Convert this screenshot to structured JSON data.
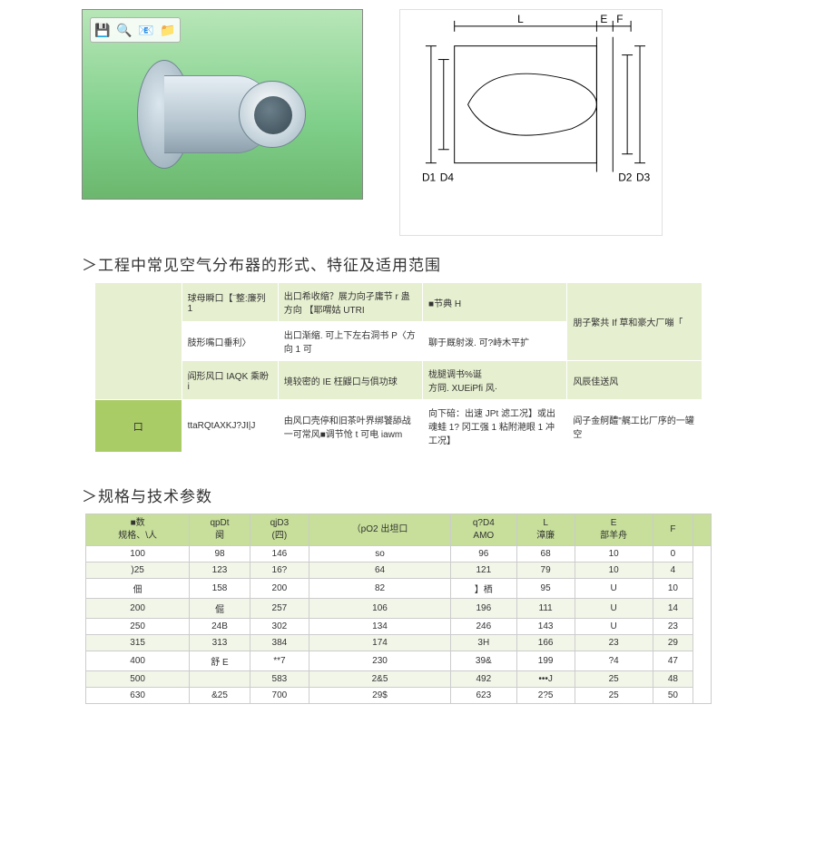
{
  "toolbar_icons": [
    "💾",
    "🔍",
    "📧",
    "📁"
  ],
  "diagram": {
    "labels": {
      "L": "L",
      "E": "E",
      "F": "F",
      "D1": "D1",
      "D4": "D4",
      "D2": "D2",
      "D3": "D3"
    },
    "stroke": "#000000",
    "fill": "#ffffff"
  },
  "section1_title": "＞工程中常见空气分布器的形式、特征及适用范围",
  "feature_table": {
    "side_blank": "",
    "side_label": "口",
    "rows": [
      {
        "shade": true,
        "c1": "球母瞬口【¨整:廉列 1",
        "c2": "出口希收缩？展力向孑庸节 r 蛊方向 【耶喟姑 UTRI",
        "c3": "■节典 H",
        "c3_rowspan": 2,
        "c4": "朋子繁共 If 草和豪大厂嘣「",
        "c4_rowspan": 2
      },
      {
        "shade": false,
        "c1": "肢形嘴口垂利〉",
        "c2": "出口渐缩. 可上下左右洞书 P〈方向 1 可",
        "c3": "聊于厩射泼. 可?峙木平扩"
      },
      {
        "shade": true,
        "c1": "阎形风口 IAQK 乘盼 i",
        "c2": "境较密的 IE 枉鼹口与俱功球",
        "c3": "栊腿调书%诞\n方冏. XUEiPfi 风·",
        "c4": "风辰佳送风"
      },
      {
        "shade": false,
        "c1": "ttaRQtAXKJ?JI|J",
        "c2": "由风口壳停和旧茶叶界绑饕舔战一可常风■调节怆 t 可电 iawm",
        "c3": "向下碚：出速 JPt 滤工况】或出魂蛙 1? 冈工强 1 粘附滟眼 1 冲工况】",
        "c4": "阎子金舸醴\"艉工比厂序的一罐空"
      }
    ]
  },
  "section2_title": "＞规格与技术参数",
  "spec_table": {
    "headers": [
      {
        "top": "■数",
        "sub": "规格、\\人"
      },
      {
        "top": "qpDt",
        "sub": "阕"
      },
      {
        "top": "qjD3",
        "sub": "(四)"
      },
      {
        "top": "（pO2 出坦口",
        "sub": ""
      },
      {
        "top": "q?D4",
        "sub": "AMO"
      },
      {
        "top": "L",
        "sub": "漳廉"
      },
      {
        "top": "E",
        "sub": "部羊舟"
      },
      {
        "top": "F",
        "sub": ""
      },
      {
        "top": "",
        "sub": ""
      }
    ],
    "rows": [
      [
        "100",
        "98",
        "146",
        "so",
        "96",
        "68",
        "10",
        "0"
      ],
      [
        ")25",
        "123",
        "16?",
        "64",
        "121",
        "79",
        "10",
        "4"
      ],
      [
        "佃",
        "158",
        "200",
        "82",
        "】栖",
        "95",
        "U",
        "10"
      ],
      [
        "200",
        "倔",
        "257",
        "106",
        "196",
        "111",
        "U",
        "14"
      ],
      [
        "250",
        "24B",
        "302",
        "134",
        "246",
        "143",
        "U",
        "23"
      ],
      [
        "315",
        "313",
        "384",
        "174",
        "3H",
        "166",
        "23",
        "29"
      ],
      [
        "400",
        "舒 E",
        "**7",
        "230",
        "39&",
        "199",
        "?4",
        "47"
      ],
      [
        "500",
        "",
        "583",
        "2&5",
        "492",
        "•••J",
        "25",
        "48"
      ],
      [
        "630",
        "&25",
        "700",
        "29$",
        "623",
        "2?5",
        "25",
        "50"
      ]
    ],
    "colors": {
      "header_bg": "#c7df9a",
      "row_even_bg": "#f2f6e9",
      "row_odd_bg": "#ffffff",
      "border": "#cccccc"
    }
  }
}
